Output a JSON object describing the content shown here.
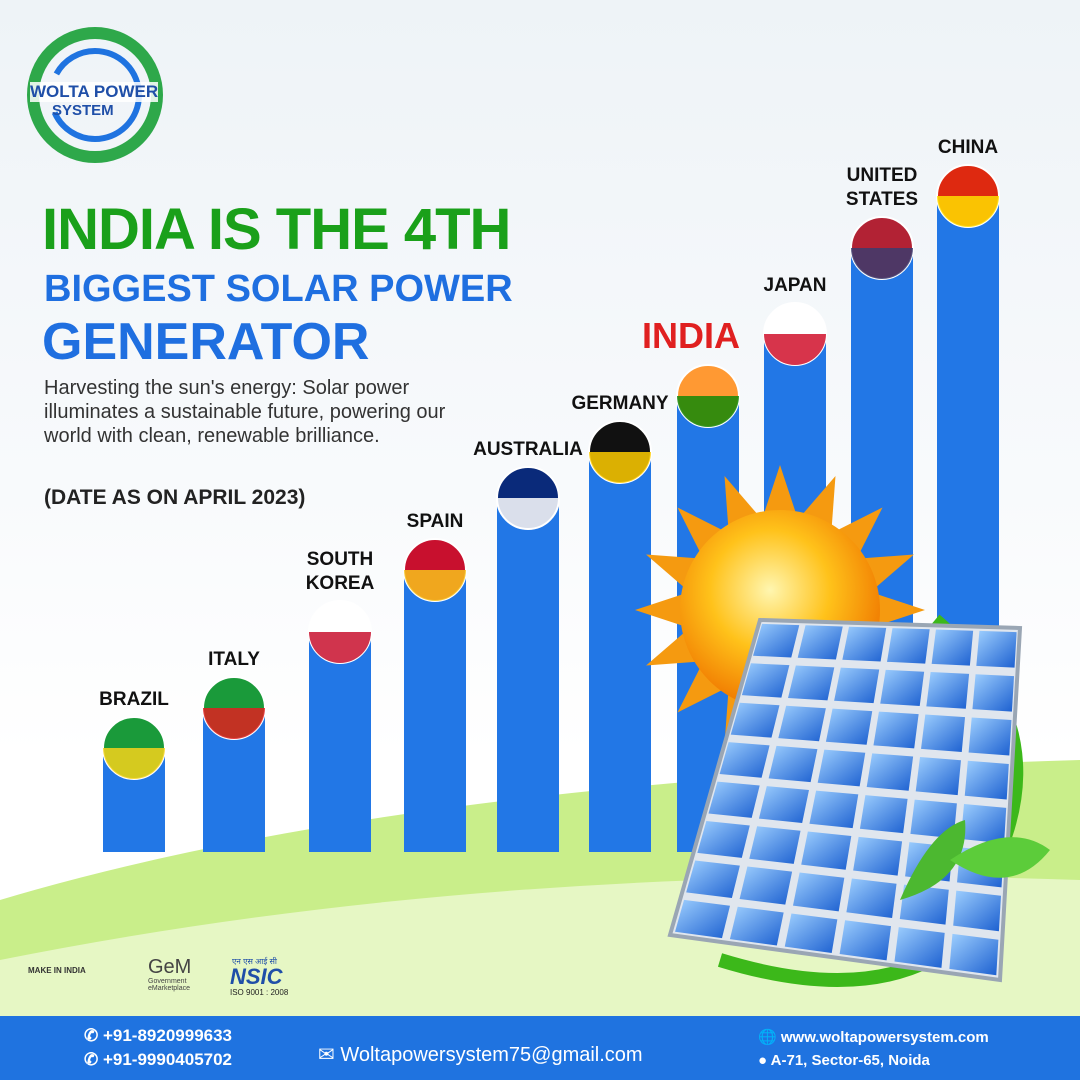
{
  "brand": {
    "line1": "WOLTA POWER",
    "line2": "SYSTEM"
  },
  "headline": {
    "line1": "INDIA IS THE 4TH",
    "line2": "BIGGEST SOLAR POWER",
    "line3": "GENERATOR"
  },
  "body": "Harvesting the sun's energy: Solar power illuminates a sustainable future, powering our world with clean, renewable brilliance.",
  "date_note": "(DATE AS ON APRIL 2023)",
  "countries": [
    "BRAZIL",
    "ITALY",
    "SOUTH KOREA",
    "SPAIN",
    "AUSTRALIA",
    "GERMANY",
    "INDIA",
    "JAPAN",
    "UNITED STATES",
    "CHINA"
  ],
  "badges": {
    "make_in_india": "MAKE IN INDIA",
    "gem": "GeM",
    "gem_sub": "Government eMarketplace",
    "nsic_hindi": "एन एस आई सी",
    "nsic": "NSIC",
    "iso": "ISO 9001 : 2008"
  },
  "footer": {
    "phone1": "+91-8920999633",
    "phone2": "+91-9990405702",
    "email": "Woltapowersystem75@gmail.com",
    "website": "www.woltapowersystem.com",
    "address": "A-71, Sector-65, Noida"
  }
}
